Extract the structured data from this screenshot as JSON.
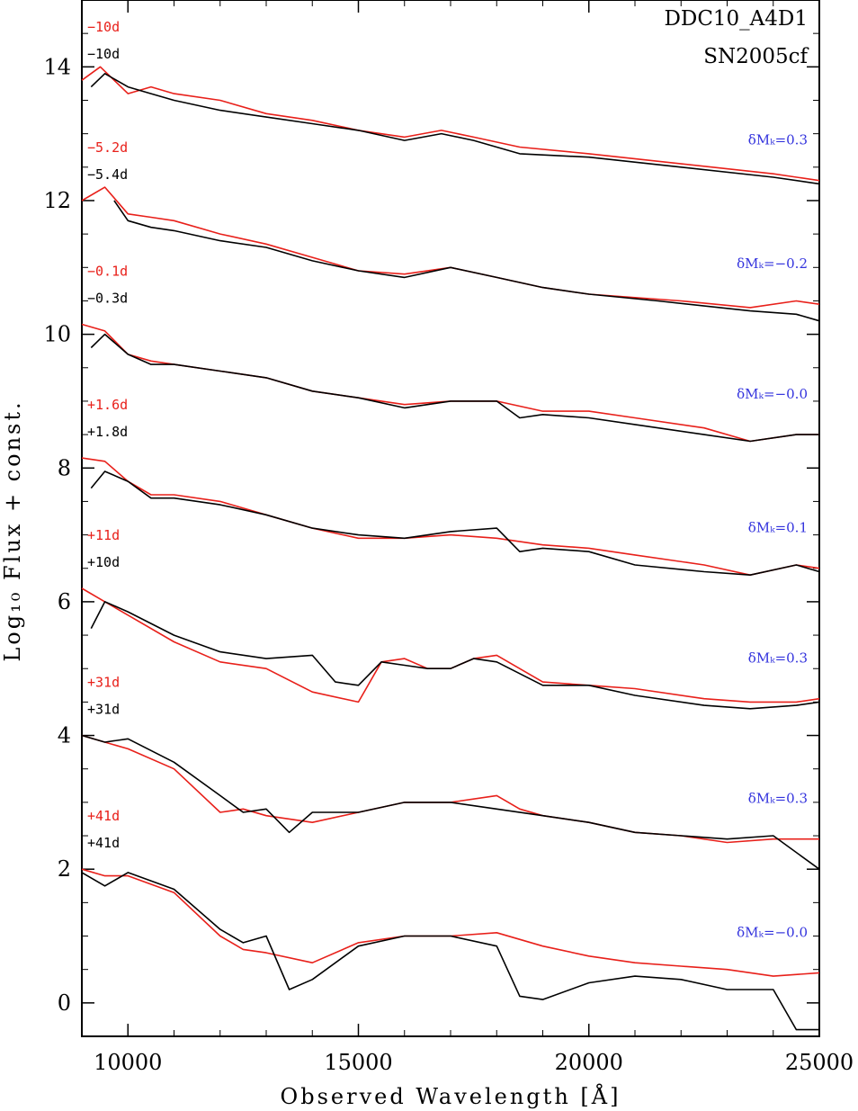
{
  "chart_data": {
    "type": "line",
    "title": "",
    "xlabel": "Observed Wavelength  [Å]",
    "ylabel": "Log₁₀ Flux + const.",
    "xlim": [
      9000,
      25000
    ],
    "ylim": [
      -0.5,
      15.0
    ],
    "xticks": [
      10000,
      15000,
      20000,
      25000
    ],
    "xtick_labels": [
      "10000",
      "15000",
      "20000",
      "25000"
    ],
    "yticks": [
      0,
      2,
      4,
      6,
      8,
      10,
      12,
      14
    ],
    "ytick_labels": [
      "0",
      "2",
      "4",
      "6",
      "8",
      "10",
      "12",
      "14"
    ],
    "grid": false,
    "legend": {
      "position": "top-right",
      "entries": [
        {
          "name": "DDC10_A4D1",
          "color": "#e8201a"
        },
        {
          "name": "SN2005cf",
          "color": "#000000"
        }
      ]
    },
    "colors": {
      "model": "#e8201a",
      "observed": "#000000",
      "offset_label": "#3333dd"
    },
    "epochs": [
      {
        "model_label": "−10d",
        "obs_label": "−10d",
        "dm_label": "δMₖ=0.3",
        "model_points": [
          [
            9000,
            13.8
          ],
          [
            9400,
            14.0
          ],
          [
            10000,
            13.6
          ],
          [
            10500,
            13.7
          ],
          [
            11000,
            13.6
          ],
          [
            12000,
            13.5
          ],
          [
            13000,
            13.3
          ],
          [
            14000,
            13.2
          ],
          [
            15000,
            13.05
          ],
          [
            16000,
            12.95
          ],
          [
            16800,
            13.05
          ],
          [
            17500,
            12.95
          ],
          [
            18500,
            12.8
          ],
          [
            20000,
            12.7
          ],
          [
            22000,
            12.55
          ],
          [
            24000,
            12.4
          ],
          [
            25000,
            12.3
          ]
        ],
        "obs_points": [
          [
            9200,
            13.7
          ],
          [
            9500,
            13.9
          ],
          [
            10000,
            13.7
          ],
          [
            10500,
            13.6
          ],
          [
            11000,
            13.5
          ],
          [
            12000,
            13.35
          ],
          [
            13000,
            13.25
          ],
          [
            14000,
            13.15
          ],
          [
            15000,
            13.05
          ],
          [
            16000,
            12.9
          ],
          [
            16800,
            13.0
          ],
          [
            17500,
            12.9
          ],
          [
            18500,
            12.7
          ],
          [
            20000,
            12.65
          ],
          [
            22000,
            12.5
          ],
          [
            24000,
            12.35
          ],
          [
            25000,
            12.25
          ]
        ]
      },
      {
        "model_label": "−5.2d",
        "obs_label": "−5.4d",
        "dm_label": "δMₖ=−0.2",
        "model_points": [
          [
            9000,
            12.0
          ],
          [
            9500,
            12.2
          ],
          [
            10000,
            11.8
          ],
          [
            10500,
            11.75
          ],
          [
            11000,
            11.7
          ],
          [
            12000,
            11.5
          ],
          [
            13000,
            11.35
          ],
          [
            14000,
            11.15
          ],
          [
            15000,
            10.95
          ],
          [
            16000,
            10.9
          ],
          [
            17000,
            11.0
          ],
          [
            18000,
            10.85
          ],
          [
            19000,
            10.7
          ],
          [
            20000,
            10.6
          ],
          [
            22000,
            10.5
          ],
          [
            23500,
            10.4
          ],
          [
            24500,
            10.5
          ],
          [
            25000,
            10.45
          ]
        ],
        "obs_points": [
          [
            9700,
            12.0
          ],
          [
            10000,
            11.7
          ],
          [
            10500,
            11.6
          ],
          [
            11000,
            11.55
          ],
          [
            12000,
            11.4
          ],
          [
            13000,
            11.3
          ],
          [
            14000,
            11.1
          ],
          [
            15000,
            10.95
          ],
          [
            16000,
            10.85
          ],
          [
            17000,
            11.0
          ],
          [
            18000,
            10.85
          ],
          [
            19000,
            10.7
          ],
          [
            20000,
            10.6
          ],
          [
            21500,
            10.5
          ],
          [
            23500,
            10.35
          ],
          [
            24500,
            10.3
          ],
          [
            25000,
            10.2
          ]
        ]
      },
      {
        "model_label": "−0.1d",
        "obs_label": "−0.3d",
        "dm_label": "δMₖ=−0.0",
        "model_points": [
          [
            9000,
            10.15
          ],
          [
            9500,
            10.05
          ],
          [
            10000,
            9.7
          ],
          [
            10500,
            9.6
          ],
          [
            11000,
            9.55
          ],
          [
            12000,
            9.45
          ],
          [
            13000,
            9.35
          ],
          [
            14000,
            9.15
          ],
          [
            15000,
            9.05
          ],
          [
            16000,
            8.95
          ],
          [
            17000,
            9.0
          ],
          [
            18000,
            9.0
          ],
          [
            19000,
            8.85
          ],
          [
            20000,
            8.85
          ],
          [
            21000,
            8.75
          ],
          [
            22500,
            8.6
          ],
          [
            23500,
            8.4
          ],
          [
            24500,
            8.5
          ],
          [
            25000,
            8.5
          ]
        ],
        "obs_points": [
          [
            9200,
            9.8
          ],
          [
            9500,
            10.0
          ],
          [
            10000,
            9.7
          ],
          [
            10500,
            9.55
          ],
          [
            11000,
            9.55
          ],
          [
            12000,
            9.45
          ],
          [
            13000,
            9.35
          ],
          [
            14000,
            9.15
          ],
          [
            15000,
            9.05
          ],
          [
            16000,
            8.9
          ],
          [
            17000,
            9.0
          ],
          [
            18000,
            9.0
          ],
          [
            18500,
            8.75
          ],
          [
            19000,
            8.8
          ],
          [
            20000,
            8.75
          ],
          [
            21000,
            8.65
          ],
          [
            22500,
            8.5
          ],
          [
            23500,
            8.4
          ],
          [
            24500,
            8.5
          ],
          [
            25000,
            8.5
          ]
        ]
      },
      {
        "model_label": "+1.6d",
        "obs_label": "+1.8d",
        "dm_label": "δMₖ=0.1",
        "model_points": [
          [
            9000,
            8.15
          ],
          [
            9500,
            8.1
          ],
          [
            10000,
            7.8
          ],
          [
            10500,
            7.6
          ],
          [
            11000,
            7.6
          ],
          [
            12000,
            7.5
          ],
          [
            13000,
            7.3
          ],
          [
            14000,
            7.1
          ],
          [
            15000,
            6.95
          ],
          [
            16000,
            6.95
          ],
          [
            17000,
            7.0
          ],
          [
            18000,
            6.95
          ],
          [
            19000,
            6.85
          ],
          [
            20000,
            6.8
          ],
          [
            21000,
            6.7
          ],
          [
            22500,
            6.55
          ],
          [
            23500,
            6.4
          ],
          [
            24500,
            6.55
          ],
          [
            25000,
            6.5
          ]
        ],
        "obs_points": [
          [
            9200,
            7.7
          ],
          [
            9500,
            7.95
          ],
          [
            10000,
            7.8
          ],
          [
            10500,
            7.55
          ],
          [
            11000,
            7.55
          ],
          [
            12000,
            7.45
          ],
          [
            13000,
            7.3
          ],
          [
            14000,
            7.1
          ],
          [
            15000,
            7.0
          ],
          [
            16000,
            6.95
          ],
          [
            17000,
            7.05
          ],
          [
            18000,
            7.1
          ],
          [
            18500,
            6.75
          ],
          [
            19000,
            6.8
          ],
          [
            20000,
            6.75
          ],
          [
            21000,
            6.55
          ],
          [
            22500,
            6.45
          ],
          [
            23500,
            6.4
          ],
          [
            24500,
            6.55
          ],
          [
            25000,
            6.45
          ]
        ]
      },
      {
        "model_label": "+11d",
        "obs_label": "+10d",
        "dm_label": "δMₖ=0.3",
        "model_points": [
          [
            9000,
            6.2
          ],
          [
            9500,
            6.0
          ],
          [
            10000,
            5.8
          ],
          [
            11000,
            5.4
          ],
          [
            12000,
            5.1
          ],
          [
            13000,
            5.0
          ],
          [
            14000,
            4.65
          ],
          [
            15000,
            4.5
          ],
          [
            15500,
            5.1
          ],
          [
            16000,
            5.15
          ],
          [
            16500,
            5.0
          ],
          [
            17000,
            5.0
          ],
          [
            17500,
            5.15
          ],
          [
            18000,
            5.2
          ],
          [
            19000,
            4.8
          ],
          [
            20000,
            4.75
          ],
          [
            21000,
            4.7
          ],
          [
            22500,
            4.55
          ],
          [
            23500,
            4.5
          ],
          [
            24500,
            4.5
          ],
          [
            25000,
            4.55
          ]
        ],
        "obs_points": [
          [
            9200,
            5.6
          ],
          [
            9500,
            6.0
          ],
          [
            10000,
            5.85
          ],
          [
            11000,
            5.5
          ],
          [
            12000,
            5.25
          ],
          [
            13000,
            5.15
          ],
          [
            14000,
            5.2
          ],
          [
            14500,
            4.8
          ],
          [
            15000,
            4.75
          ],
          [
            15500,
            5.1
          ],
          [
            16000,
            5.05
          ],
          [
            16500,
            5.0
          ],
          [
            17000,
            5.0
          ],
          [
            17500,
            5.15
          ],
          [
            18000,
            5.1
          ],
          [
            19000,
            4.75
          ],
          [
            20000,
            4.75
          ],
          [
            21000,
            4.6
          ],
          [
            22500,
            4.45
          ],
          [
            23500,
            4.4
          ],
          [
            24500,
            4.45
          ],
          [
            25000,
            4.5
          ]
        ]
      },
      {
        "model_label": "+31d",
        "obs_label": "+31d",
        "dm_label": "δMₖ=0.3",
        "model_points": [
          [
            9000,
            4.0
          ],
          [
            9500,
            3.9
          ],
          [
            10000,
            3.8
          ],
          [
            11000,
            3.5
          ],
          [
            12000,
            2.85
          ],
          [
            12500,
            2.9
          ],
          [
            13000,
            2.8
          ],
          [
            14000,
            2.7
          ],
          [
            15000,
            2.85
          ],
          [
            16000,
            3.0
          ],
          [
            17000,
            3.0
          ],
          [
            18000,
            3.1
          ],
          [
            18500,
            2.9
          ],
          [
            19000,
            2.8
          ],
          [
            20000,
            2.7
          ],
          [
            21000,
            2.55
          ],
          [
            22000,
            2.5
          ],
          [
            23000,
            2.4
          ],
          [
            24000,
            2.45
          ],
          [
            25000,
            2.45
          ]
        ],
        "obs_points": [
          [
            9000,
            4.0
          ],
          [
            9500,
            3.9
          ],
          [
            10000,
            3.95
          ],
          [
            11000,
            3.6
          ],
          [
            12000,
            3.1
          ],
          [
            12500,
            2.85
          ],
          [
            13000,
            2.9
          ],
          [
            13500,
            2.55
          ],
          [
            14000,
            2.85
          ],
          [
            15000,
            2.85
          ],
          [
            16000,
            3.0
          ],
          [
            17000,
            3.0
          ],
          [
            18000,
            2.9
          ],
          [
            19000,
            2.8
          ],
          [
            20000,
            2.7
          ],
          [
            21000,
            2.55
          ],
          [
            22000,
            2.5
          ],
          [
            23000,
            2.45
          ],
          [
            24000,
            2.5
          ],
          [
            25000,
            2.0
          ]
        ]
      },
      {
        "model_label": "+41d",
        "obs_label": "+41d",
        "dm_label": "δMₖ=−0.0",
        "model_points": [
          [
            9000,
            2.0
          ],
          [
            9500,
            1.9
          ],
          [
            10000,
            1.9
          ],
          [
            11000,
            1.65
          ],
          [
            12000,
            1.0
          ],
          [
            12500,
            0.8
          ],
          [
            13000,
            0.75
          ],
          [
            14000,
            0.6
          ],
          [
            15000,
            0.9
          ],
          [
            16000,
            1.0
          ],
          [
            17000,
            1.0
          ],
          [
            18000,
            1.05
          ],
          [
            19000,
            0.85
          ],
          [
            20000,
            0.7
          ],
          [
            21000,
            0.6
          ],
          [
            22000,
            0.55
          ],
          [
            23000,
            0.5
          ],
          [
            24000,
            0.4
          ],
          [
            25000,
            0.45
          ]
        ],
        "obs_points": [
          [
            9000,
            1.95
          ],
          [
            9500,
            1.75
          ],
          [
            10000,
            1.95
          ],
          [
            11000,
            1.7
          ],
          [
            12000,
            1.1
          ],
          [
            12500,
            0.9
          ],
          [
            13000,
            1.0
          ],
          [
            13500,
            0.2
          ],
          [
            14000,
            0.35
          ],
          [
            15000,
            0.85
          ],
          [
            16000,
            1.0
          ],
          [
            17000,
            1.0
          ],
          [
            18000,
            0.85
          ],
          [
            18500,
            0.1
          ],
          [
            19000,
            0.05
          ],
          [
            20000,
            0.3
          ],
          [
            21000,
            0.4
          ],
          [
            22000,
            0.35
          ],
          [
            23000,
            0.2
          ],
          [
            24000,
            0.2
          ],
          [
            24500,
            -0.4
          ],
          [
            25000,
            -0.4
          ]
        ]
      }
    ]
  }
}
